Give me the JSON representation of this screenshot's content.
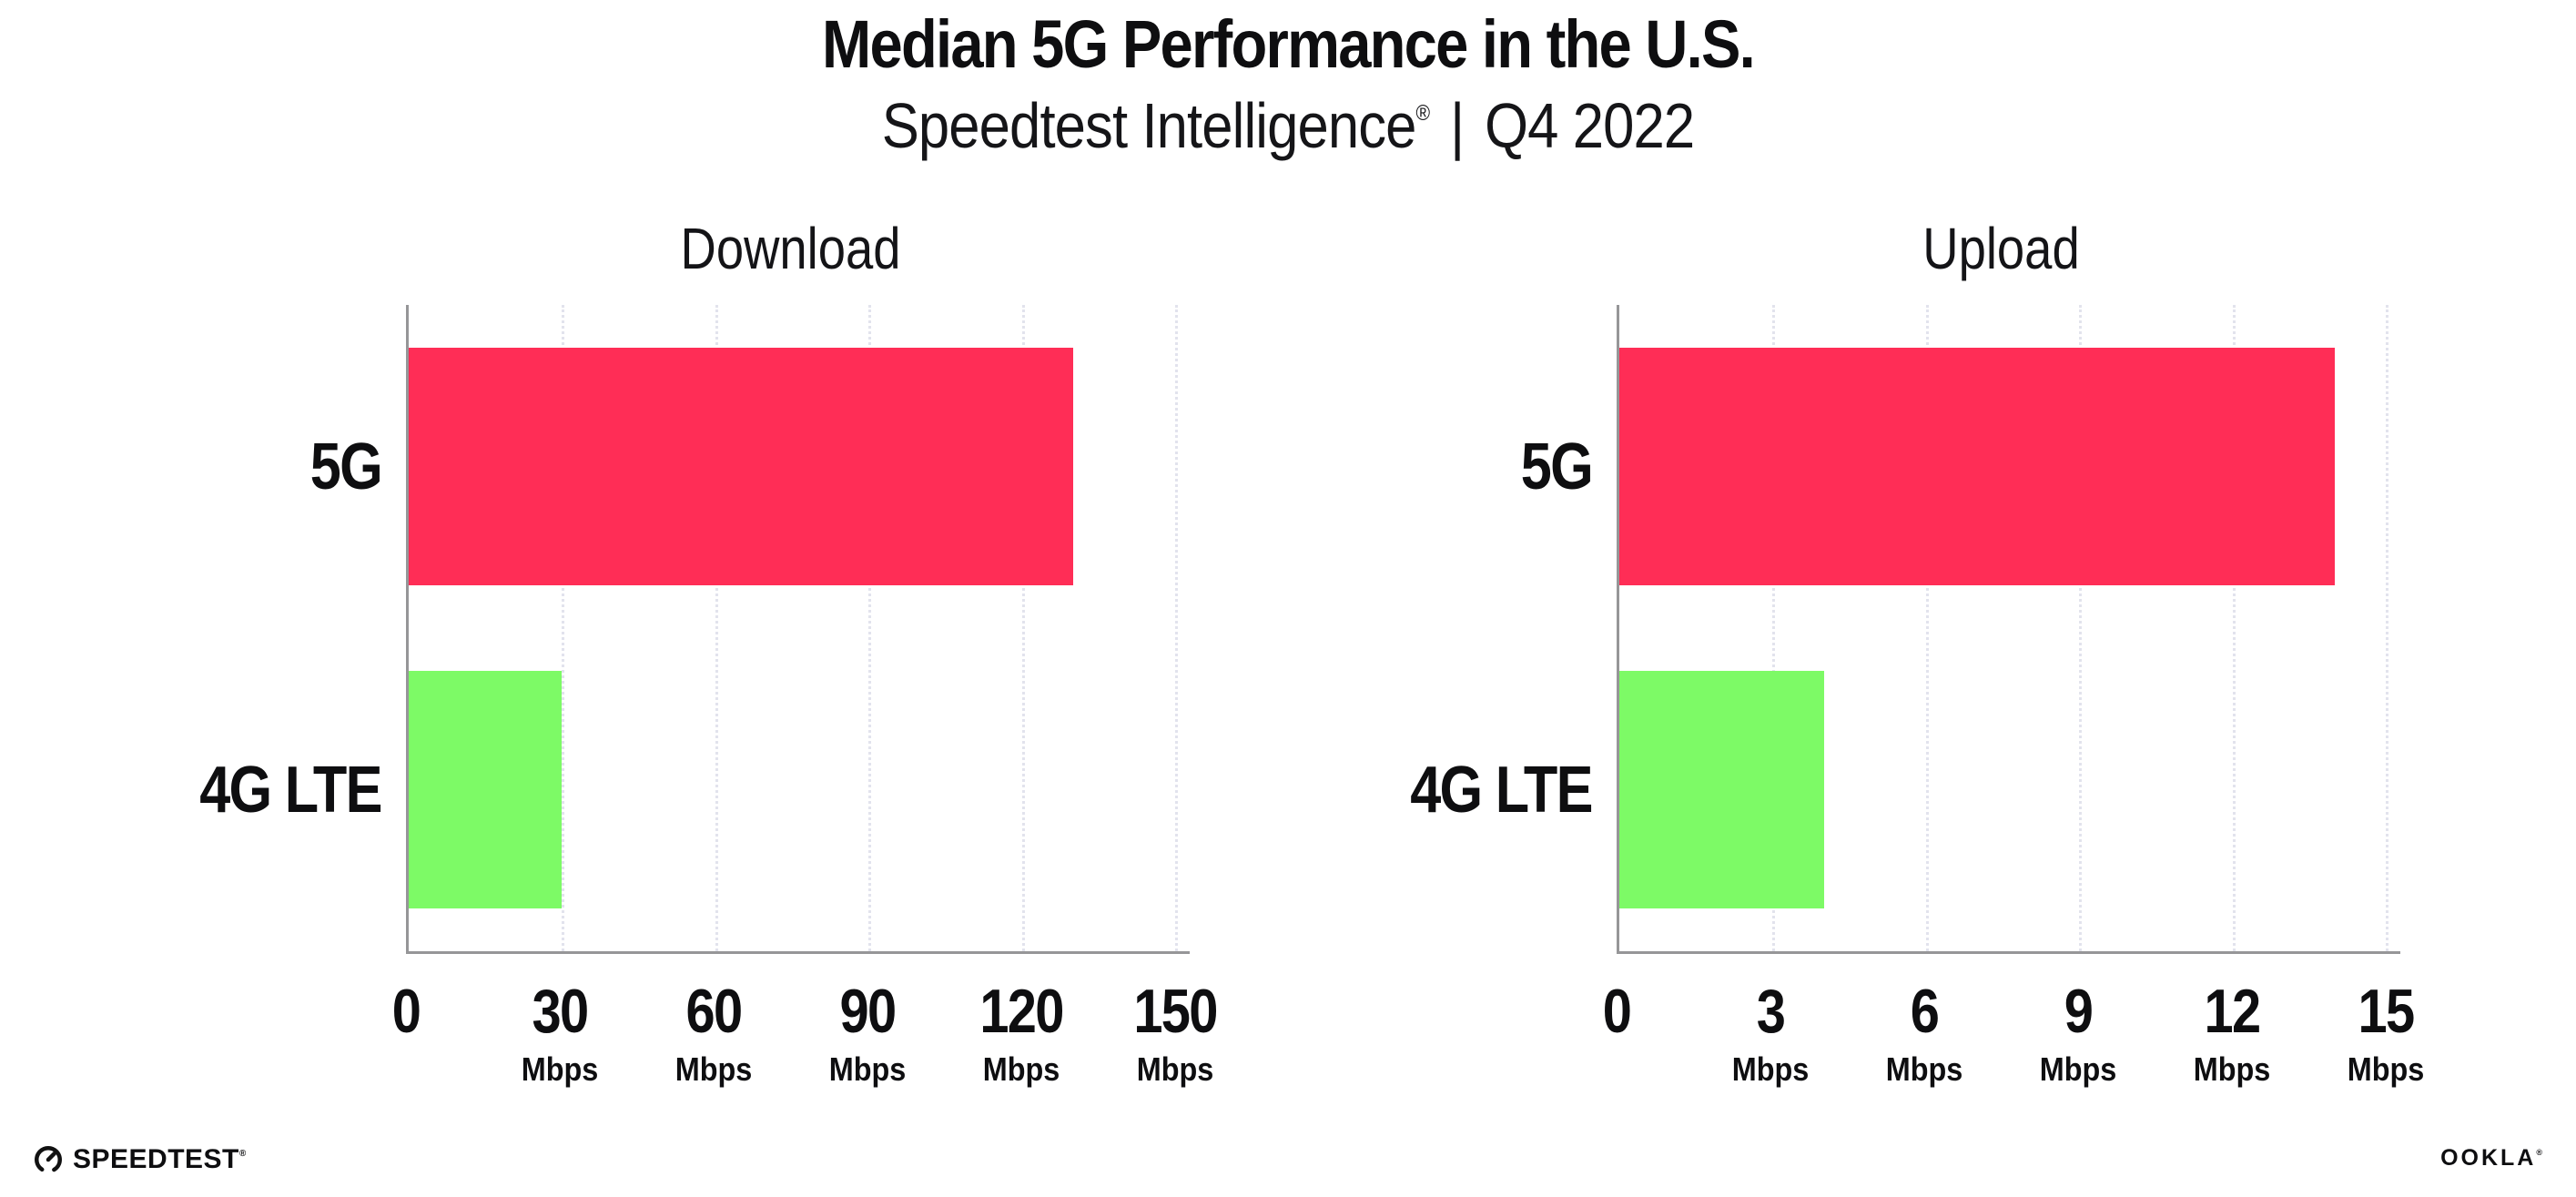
{
  "header": {
    "title": "Median 5G Performance in the U.S.",
    "subtitle": {
      "brand": "Speedtest Intelligence",
      "mark": "®",
      "separator": "|",
      "period": "Q4 2022"
    }
  },
  "chart_data": [
    {
      "type": "bar",
      "orientation": "horizontal",
      "title": "Download",
      "categories": [
        "5G",
        "4G LTE"
      ],
      "values": [
        130,
        30
      ],
      "unit": "Mbps",
      "xlim": [
        0,
        150
      ],
      "xticks": [
        0,
        30,
        60,
        90,
        120,
        150
      ],
      "bar_colors": [
        "#FF2D56",
        "#7DFA66"
      ],
      "grid": "dotted-vertical",
      "legend": "none"
    },
    {
      "type": "bar",
      "orientation": "horizontal",
      "title": "Upload",
      "categories": [
        "5G",
        "4G LTE"
      ],
      "values": [
        14,
        4
      ],
      "unit": "Mbps",
      "xlim": [
        0,
        15
      ],
      "xticks": [
        0,
        3,
        6,
        9,
        12,
        15
      ],
      "bar_colors": [
        "#FF2D56",
        "#7DFA66"
      ],
      "grid": "dotted-vertical",
      "legend": "none"
    }
  ],
  "colors": {
    "bar_5g": "#FF2D56",
    "bar_4g_lte": "#7DFA66",
    "axis": "#969698",
    "gridline": "#E2E3ED",
    "text": "#0E0E10",
    "background": "#FFFFFF"
  },
  "footer": {
    "speedtest_label": "SPEEDTEST",
    "speedtest_mark": "®",
    "gauge_icon": "speedtest-gauge-icon",
    "ookla_label": "OOKLA",
    "ookla_mark": "®"
  }
}
